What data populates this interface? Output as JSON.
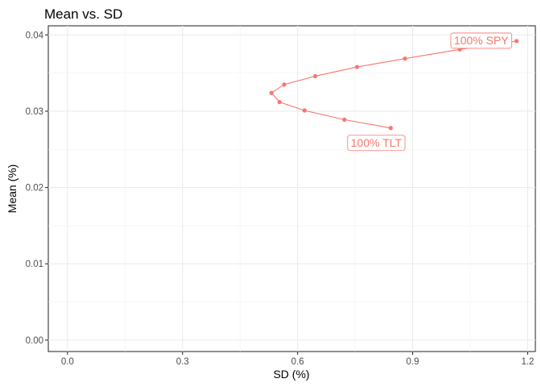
{
  "chart_data": {
    "type": "line",
    "title": "Mean vs. SD",
    "xlabel": "SD (%)",
    "ylabel": "Mean (%)",
    "xlim": [
      -0.05,
      1.22
    ],
    "ylim": [
      -0.0015,
      0.0412
    ],
    "x_ticks": [
      0.0,
      0.3,
      0.6,
      0.9,
      1.2
    ],
    "x_tick_labels": [
      "0.0",
      "0.3",
      "0.6",
      "0.9",
      "1.2"
    ],
    "y_ticks": [
      0.0,
      0.01,
      0.02,
      0.03,
      0.04
    ],
    "y_tick_labels": [
      "0.00",
      "0.01",
      "0.02",
      "0.03",
      "0.04"
    ],
    "grid": true,
    "color": "#F8766D",
    "series": [
      {
        "x": [
          0.843,
          0.722,
          0.618,
          0.553,
          0.532,
          0.565,
          0.646,
          0.755,
          0.88,
          1.023,
          1.171
        ],
        "y": [
          0.0278,
          0.0289,
          0.0301,
          0.0312,
          0.0324,
          0.0335,
          0.0346,
          0.0358,
          0.0369,
          0.0381,
          0.0392
        ]
      }
    ],
    "annotations": [
      {
        "text": "100% SPY",
        "x": 1.171,
        "y": 0.0392
      },
      {
        "text": "100% TLT",
        "x": 0.843,
        "y": 0.0278
      }
    ]
  }
}
